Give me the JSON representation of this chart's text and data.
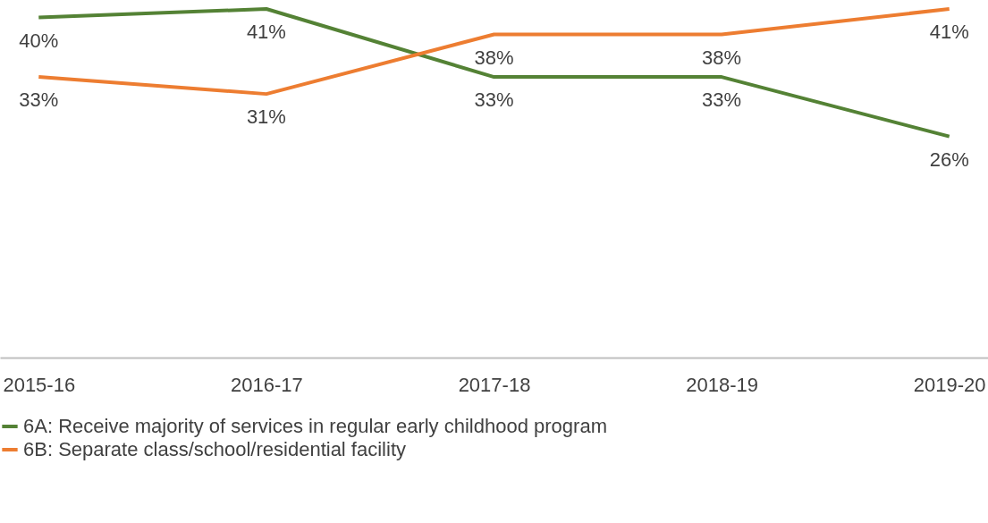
{
  "chart_data": {
    "type": "line",
    "categories": [
      "2015-16",
      "2016-17",
      "2017-18",
      "2018-19",
      "2019-20"
    ],
    "series": [
      {
        "name": "6A: Receive majority of services in regular early childhood program",
        "color": "#548235",
        "values": [
          40,
          41,
          33,
          33,
          26
        ],
        "value_labels": [
          "40%",
          "41%",
          "33%",
          "33%",
          "26%"
        ]
      },
      {
        "name": "6B: Separate class/school/residential facility",
        "color": "#ed7d31",
        "values": [
          33,
          31,
          38,
          38,
          41
        ],
        "value_labels": [
          "33%",
          "31%",
          "38%",
          "38%",
          "41%"
        ]
      }
    ],
    "tick_labels": "x",
    "legend": "bottom",
    "marker": "none",
    "line_style": "solid"
  }
}
